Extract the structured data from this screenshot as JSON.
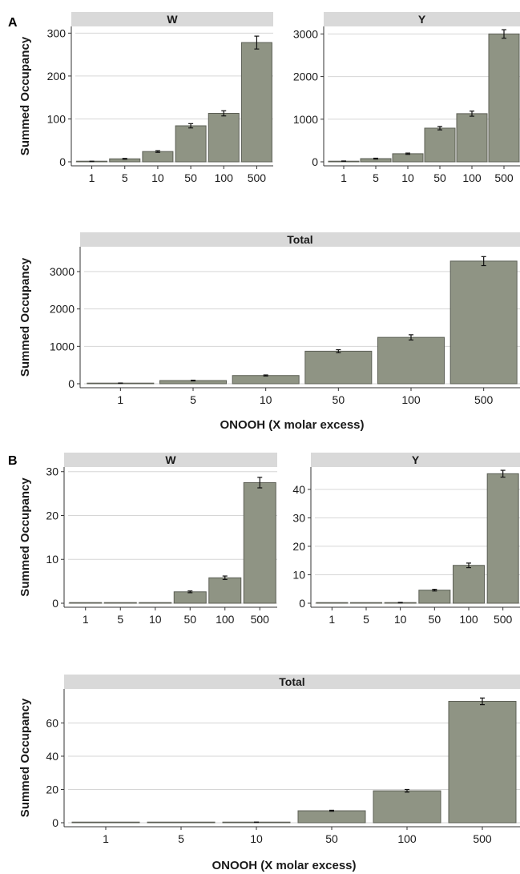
{
  "panel_labels": [
    "A",
    "B"
  ],
  "chart_data": [
    {
      "type": "bar",
      "panel": "A",
      "title": "W",
      "ylabel": "Summed Occupancy",
      "xlabel": "",
      "categories": [
        "1",
        "5",
        "10",
        "50",
        "100",
        "500"
      ],
      "values": [
        1,
        7,
        24,
        84,
        113,
        278
      ],
      "errors": [
        0.5,
        1,
        2,
        5,
        6,
        15
      ],
      "ylim": [
        0,
        310
      ],
      "yticks": [
        0,
        100,
        200,
        300
      ],
      "grid": true
    },
    {
      "type": "bar",
      "panel": "A",
      "title": "Y",
      "ylabel": "",
      "xlabel": "",
      "categories": [
        "1",
        "5",
        "10",
        "50",
        "100",
        "500"
      ],
      "values": [
        15,
        75,
        190,
        790,
        1130,
        3000
      ],
      "errors": [
        5,
        10,
        15,
        40,
        60,
        100
      ],
      "ylim": [
        0,
        3120
      ],
      "yticks": [
        0,
        1000,
        2000,
        3000
      ],
      "grid": true
    },
    {
      "type": "bar",
      "panel": "A",
      "title": "Total",
      "ylabel": "Summed Occupancy",
      "xlabel": "ONOOH (X molar excess)",
      "categories": [
        "1",
        "5",
        "10",
        "50",
        "100",
        "500"
      ],
      "values": [
        15,
        85,
        220,
        870,
        1240,
        3280
      ],
      "errors": [
        5,
        10,
        15,
        40,
        70,
        120
      ],
      "ylim": [
        0,
        3600
      ],
      "yticks": [
        0,
        1000,
        2000,
        3000
      ],
      "grid": true
    },
    {
      "type": "bar",
      "panel": "B",
      "title": "W",
      "ylabel": "Summed Occupancy",
      "xlabel": "",
      "categories": [
        "1",
        "5",
        "10",
        "50",
        "100",
        "500"
      ],
      "values": [
        0,
        0,
        0,
        2.6,
        5.8,
        27.5
      ],
      "errors": [
        0,
        0,
        0,
        0.2,
        0.4,
        1.2
      ],
      "ylim": [
        0,
        30.5
      ],
      "yticks": [
        0,
        10,
        20,
        30
      ],
      "grid": true
    },
    {
      "type": "bar",
      "panel": "B",
      "title": "Y",
      "ylabel": "",
      "xlabel": "",
      "categories": [
        "1",
        "5",
        "10",
        "50",
        "100",
        "500"
      ],
      "values": [
        0,
        0,
        0.2,
        4.6,
        13.3,
        45.5
      ],
      "errors": [
        0,
        0,
        0.1,
        0.3,
        0.8,
        1.2
      ],
      "ylim": [
        0,
        47
      ],
      "yticks": [
        0,
        10,
        20,
        30,
        40
      ],
      "grid": true
    },
    {
      "type": "bar",
      "panel": "B",
      "title": "Total",
      "ylabel": "Summed Occupancy",
      "xlabel": "ONOOH (X molar excess)",
      "categories": [
        "1",
        "5",
        "10",
        "50",
        "100",
        "500"
      ],
      "values": [
        0,
        0,
        0.3,
        7.2,
        19.2,
        73
      ],
      "errors": [
        0,
        0,
        0.1,
        0.3,
        0.8,
        2
      ],
      "ylim": [
        0,
        79
      ],
      "yticks": [
        0,
        20,
        40,
        60
      ],
      "grid": true
    }
  ],
  "colors": {
    "bar_fill": "#8f9484",
    "bar_stroke": "#5c5f55",
    "strip_fill": "#d9d9d9",
    "grid": "#d6d6d6",
    "axis": "#333333"
  }
}
